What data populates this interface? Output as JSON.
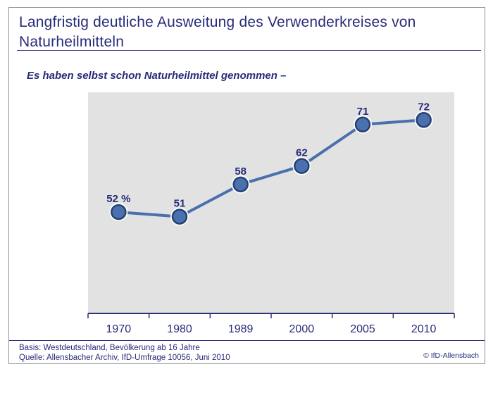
{
  "slide": {
    "title": "Langfristig deutliche Ausweitung des Verwenderkreises von Naturheilmitteln",
    "subtitle": "Es haben selbst schon Naturheilmittel genommen –",
    "footer": {
      "basis": "Basis: Westdeutschland, Bevölkerung ab 16 Jahre",
      "quelle": "Quelle: Allensbacher Archiv, IfD-Umfrage 10056, Juni 2010",
      "copyright": "© IfD-Allensbach"
    }
  },
  "colors": {
    "text_navy": "#282b7a",
    "axis": "#2c3272",
    "line_blue": "#4a6fae",
    "marker_fill": "#4a70af",
    "marker_stroke": "#27416f",
    "marker_halo": "#ffffff",
    "plot_bg": "#e2e2e2",
    "frame_border": "#8f8f8f"
  },
  "chart_data": {
    "type": "line",
    "title": "Es haben selbst schon Naturheilmittel genommen –",
    "categories": [
      "1970",
      "1980",
      "1989",
      "2000",
      "2005",
      "2010"
    ],
    "values": [
      52,
      51,
      58,
      62,
      71,
      72
    ],
    "point_labels": [
      "52 %",
      "51",
      "58",
      "62",
      "71",
      "72"
    ],
    "xlabel": "",
    "ylabel": "",
    "ylim": [
      30,
      78
    ],
    "unit": "%",
    "grid": false,
    "legend": "none"
  }
}
